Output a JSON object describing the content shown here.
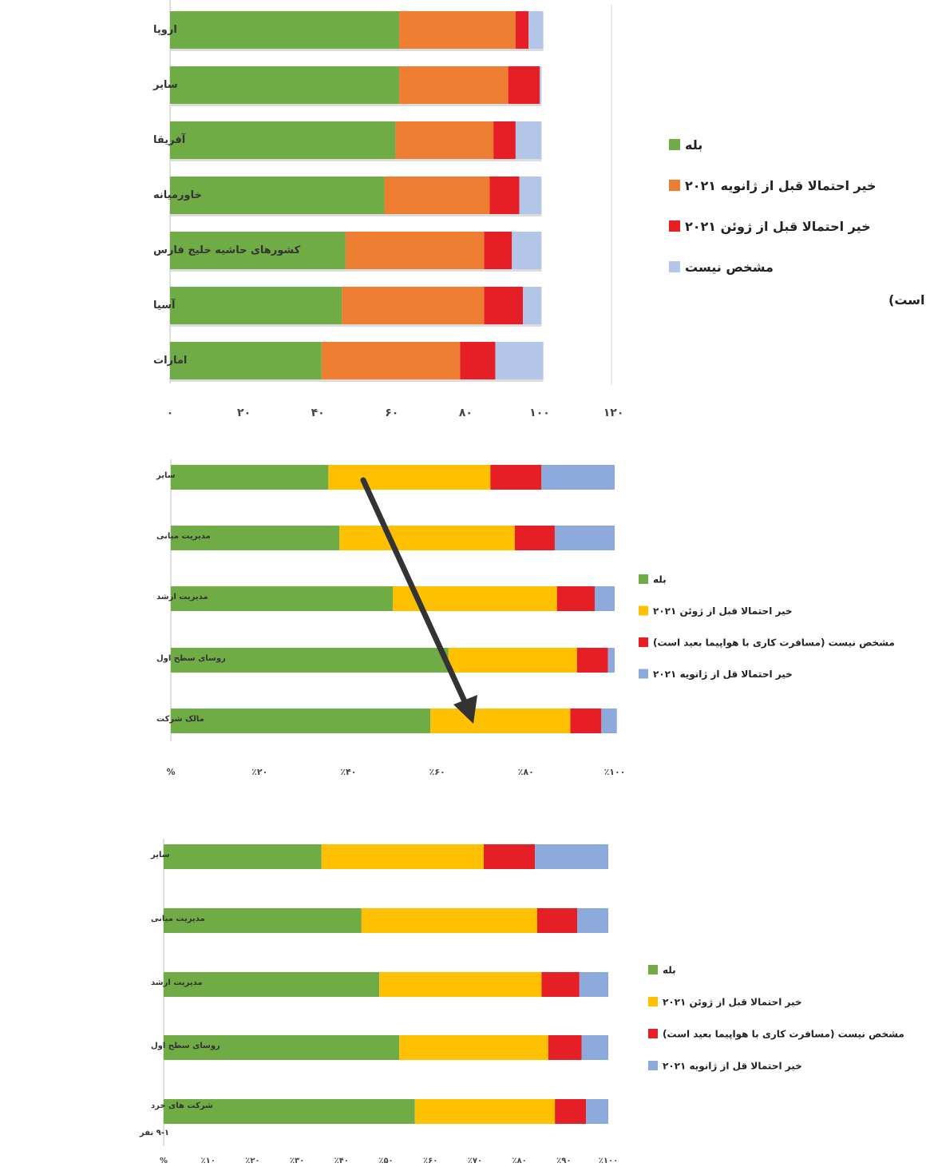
{
  "colors": {
    "green": "#6fac46",
    "orange": "#ec7d31",
    "red": "#e61e25",
    "lightblue": "#b4c6e7",
    "yellow": "#fec000",
    "blue": "#8ea9db",
    "arrow": "#333333"
  },
  "chart_data": [
    {
      "type": "bar",
      "stacked": true,
      "orientation": "horizontal",
      "categories": [
        "اروپا",
        "سایر",
        "آفریقا",
        "خاورمیانه",
        "کشورهای حاشیه خلیج فارس",
        "آسیا",
        "امارات"
      ],
      "series": [
        {
          "name": "بله",
          "color": "#6fac46",
          "values": [
            62,
            62,
            61,
            58,
            47.5,
            46.5,
            41
          ]
        },
        {
          "name": "خیر احتمالا قبل از ژانویه ۲۰۲۱",
          "color": "#ec7d31",
          "values": [
            31.5,
            29.5,
            26.5,
            28.5,
            37.5,
            38.5,
            37.5
          ]
        },
        {
          "name": "خیر احتمالا قبل از ژوئن ۲۰۲۱",
          "color": "#e61e25",
          "values": [
            3.5,
            8.5,
            6,
            8,
            7.5,
            10.5,
            9.5
          ]
        },
        {
          "name": "مشخص نیست",
          "color": "#b4c6e7",
          "values": [
            4,
            0.5,
            7,
            6,
            8,
            5,
            13
          ]
        }
      ],
      "legend_extra": "(مسافرت کاری با هواپیما بعید است)",
      "x_ticks": [
        "۰",
        "۲۰",
        "۴۰",
        "۶۰",
        "۸۰",
        "۱۰۰",
        "۱۲۰"
      ],
      "xlim": [
        0,
        120
      ],
      "grid": false,
      "legend_position": "right"
    },
    {
      "type": "bar",
      "stacked": true,
      "orientation": "horizontal",
      "categories": [
        "سایر",
        "مدیریت میانی",
        "مدیریت ارشد",
        "روسای سطح اول",
        "مالک شرکت"
      ],
      "series": [
        {
          "name": "بله",
          "color": "#6fac46",
          "values": [
            35.5,
            38,
            50,
            62.5,
            58.5
          ]
        },
        {
          "name": "خیر احتمالا قبل از ژوئن ۲۰۲۱",
          "color": "#fec000",
          "values": [
            36.5,
            39.5,
            37,
            29,
            31.5
          ]
        },
        {
          "name": "مشخص نیست (مسافرت کاری با هواپیما بعید است)",
          "color": "#e61e25",
          "values": [
            11.5,
            9,
            8.5,
            7,
            7
          ]
        },
        {
          "name": "خیر احتمالا قل از ژانویه ۲۰۲۱",
          "color": "#8ea9db",
          "values": [
            16.5,
            13.5,
            4.5,
            1.5,
            3.5
          ]
        }
      ],
      "x_ticks": [
        "%",
        "٪۲۰",
        "٪۴۰",
        "٪۶۰",
        "٪۸۰",
        "٪۱۰۰"
      ],
      "xlim": [
        0,
        100
      ],
      "grid": false,
      "legend_position": "right",
      "annotation": "arrow"
    },
    {
      "type": "bar",
      "stacked": true,
      "orientation": "horizontal",
      "categories": [
        "سایر",
        "مدیریت میانی",
        "مدیریت ارشد",
        "روسای سطح اول",
        "شرکت های خرد ۹-۱ نفر"
      ],
      "series": [
        {
          "name": "بله",
          "color": "#6fac46",
          "values": [
            35.5,
            44.5,
            48.5,
            53,
            56.5
          ]
        },
        {
          "name": "خیر احتمالا قبل از ژوئن ۲۰۲۱",
          "color": "#fec000",
          "values": [
            36.5,
            39.5,
            36.5,
            33.5,
            31.5
          ]
        },
        {
          "name": "مشخص نیست (مسافرت کاری با هواپیما بعید است)",
          "color": "#e61e25",
          "values": [
            11.5,
            9,
            8.5,
            7.5,
            7
          ]
        },
        {
          "name": "خیر احتمالا قل از ژانویه ۲۰۲۱",
          "color": "#8ea9db",
          "values": [
            16.5,
            7,
            6.5,
            6,
            5
          ]
        }
      ],
      "x_ticks": [
        "%",
        "٪۱۰",
        "٪۲۰",
        "٪۳۰",
        "٪۴۰",
        "٪۵۰",
        "٪۶۰",
        "٪۷۰",
        "٪۸۰",
        "٪۹۰",
        "٪۱۰۰"
      ],
      "xlim": [
        0,
        100
      ],
      "grid": false,
      "legend_position": "right"
    }
  ]
}
